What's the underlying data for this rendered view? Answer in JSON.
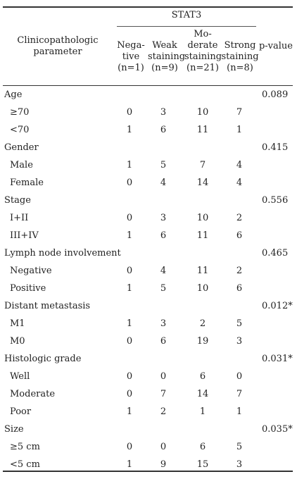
{
  "header": {
    "group_title": "STAT3",
    "parameter_label": "Clinicopathologic\nparameter",
    "columns": [
      "Nega-\ntive\n(n=1)",
      "Weak\nstaining\n(n=9)",
      "Mo-\nderate\nstaining\n(n=21)",
      "Strong\nstaining\n(n=8)"
    ],
    "pvalue_label": "p-value"
  },
  "rows": [
    {
      "kind": "group",
      "label": "Age",
      "pvalue": "0.089"
    },
    {
      "kind": "sub",
      "label": "≥70",
      "values": [
        "0",
        "3",
        "10",
        "7"
      ]
    },
    {
      "kind": "sub",
      "label": "<70",
      "values": [
        "1",
        "6",
        "11",
        "1"
      ]
    },
    {
      "kind": "group",
      "label": "Gender",
      "pvalue": "0.415"
    },
    {
      "kind": "sub",
      "label": "Male",
      "values": [
        "1",
        "5",
        "7",
        "4"
      ]
    },
    {
      "kind": "sub",
      "label": "Female",
      "values": [
        "0",
        "4",
        "14",
        "4"
      ]
    },
    {
      "kind": "group",
      "label": "Stage",
      "pvalue": "0.556"
    },
    {
      "kind": "sub",
      "label": "I+II",
      "values": [
        "0",
        "3",
        "10",
        "2"
      ]
    },
    {
      "kind": "sub",
      "label": "III+IV",
      "values": [
        "1",
        "6",
        "11",
        "6"
      ]
    },
    {
      "kind": "group",
      "label": "Lymph node involvement",
      "pvalue": "0.465"
    },
    {
      "kind": "sub",
      "label": "Negative",
      "values": [
        "0",
        "4",
        "11",
        "2"
      ]
    },
    {
      "kind": "sub",
      "label": "Positive",
      "values": [
        "1",
        "5",
        "10",
        "6"
      ]
    },
    {
      "kind": "group",
      "label": "Distant metastasis",
      "pvalue": "0.012*"
    },
    {
      "kind": "sub",
      "label": "M1",
      "values": [
        "1",
        "3",
        "2",
        "5"
      ]
    },
    {
      "kind": "sub",
      "label": "M0",
      "values": [
        "0",
        "6",
        "19",
        "3"
      ]
    },
    {
      "kind": "group",
      "label": "Histologic grade",
      "pvalue": "0.031*"
    },
    {
      "kind": "sub",
      "label": "Well",
      "values": [
        "0",
        "0",
        "6",
        "0"
      ]
    },
    {
      "kind": "sub",
      "label": "Moderate",
      "values": [
        "0",
        "7",
        "14",
        "7"
      ]
    },
    {
      "kind": "sub",
      "label": "Poor",
      "values": [
        "1",
        "2",
        "1",
        "1"
      ]
    },
    {
      "kind": "group",
      "label": "Size",
      "pvalue": "0.035*"
    },
    {
      "kind": "sub",
      "label": "≥5 cm",
      "values": [
        "0",
        "0",
        "6",
        "5"
      ]
    },
    {
      "kind": "sub",
      "label": "<5 cm",
      "values": [
        "1",
        "9",
        "15",
        "3"
      ]
    }
  ]
}
